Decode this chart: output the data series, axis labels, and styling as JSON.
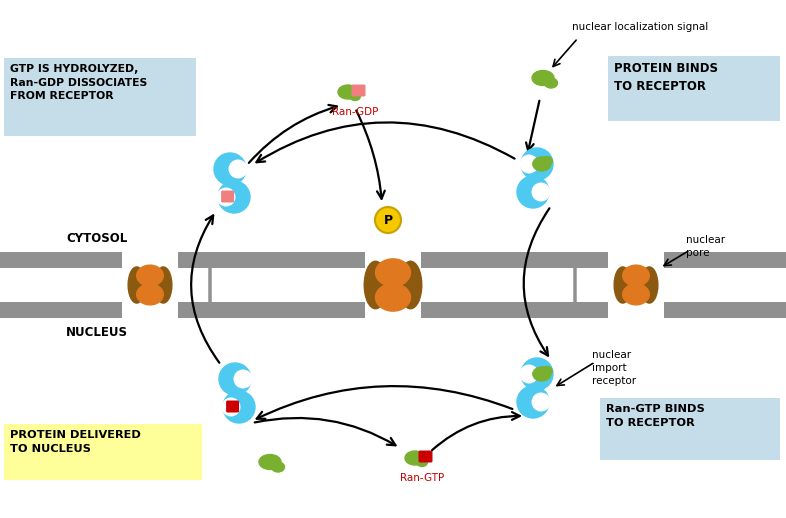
{
  "bg_color": "#ffffff",
  "box1_text": "GTP IS HYDROLYZED,\nRan-GDP DISSOCIATES\nFROM RECEPTOR",
  "box1_color": "#c5dde8",
  "box2_text": "PROTEIN BINDS\nTO RECEPTOR",
  "box2_color": "#c5dde8",
  "box3_text": "nuclear\nimport\nreceptor",
  "box4_text": "Ran-GTP BINDS\nTO RECEPTOR",
  "box4_color": "#c5dde8",
  "box5_text": "PROTEIN DELIVERED\nTO NUCLEUS",
  "box5_color": "#ffff99",
  "label_ran_gdp": "Ran-GDP",
  "label_ran_gtp": "Ran-GTP",
  "label_nls": "nuclear localization signal",
  "label_cytosol": "CYTOSOL",
  "label_nucleus": "NUCLEUS",
  "label_nuclear_pore": "nuclear\npore",
  "label_p": "P",
  "receptor_color": "#4ec9f0",
  "gdp_tag_color": "#f08080",
  "gtp_tag_color": "#cc0000",
  "protein_color": "#7ab030",
  "pore_orange": "#e07820",
  "pore_brown": "#8b5a10",
  "membrane_color": "#909090",
  "nucleus_fill": "#e0e0e0",
  "p_color": "#f5c800",
  "p_border": "#c8a000",
  "arrow_color": "#000000",
  "red_label_color": "#cc0000"
}
